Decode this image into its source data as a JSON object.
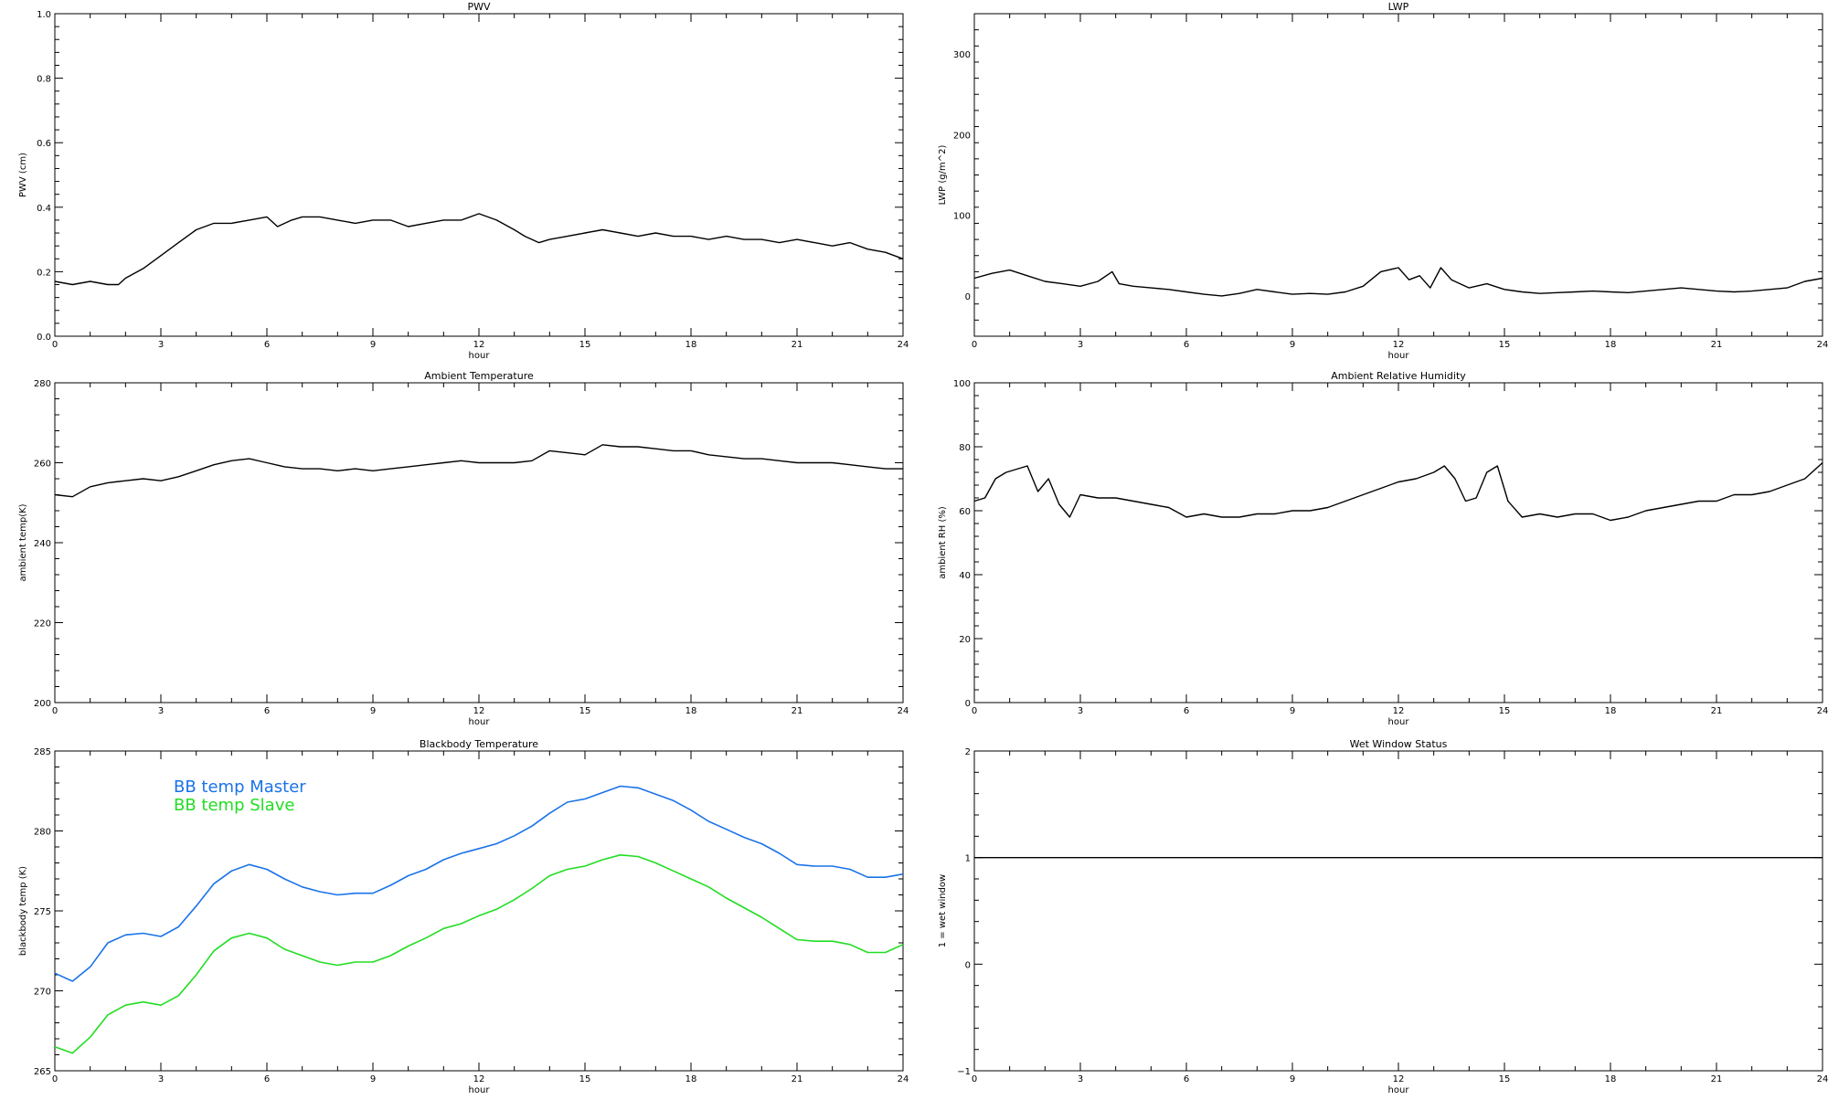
{
  "chart_data": [
    {
      "type": "line",
      "title": "PWV",
      "xlabel": "hour",
      "ylabel": "PWV (cm)",
      "xlim": [
        0,
        24
      ],
      "ylim": [
        0.0,
        1.0
      ],
      "xticks": [
        0,
        3,
        6,
        9,
        12,
        15,
        18,
        21,
        24
      ],
      "yticks": [
        0.0,
        0.2,
        0.4,
        0.6,
        0.8,
        1.0
      ],
      "yticks_labels": [
        "0.0",
        "0.2",
        "0.4",
        "0.6",
        "0.8",
        "1.0"
      ],
      "series": [
        {
          "color": "#000000",
          "x": [
            0,
            0.5,
            1,
            1.5,
            1.8,
            2,
            2.5,
            3,
            3.5,
            4,
            4.5,
            5,
            5.5,
            6,
            6.3,
            6.7,
            7,
            7.5,
            8,
            8.5,
            9,
            9.5,
            10,
            10.5,
            11,
            11.5,
            12,
            12.5,
            13,
            13.3,
            13.7,
            14,
            14.5,
            15,
            15.5,
            16,
            16.5,
            17,
            17.5,
            18,
            18.5,
            19,
            19.5,
            20,
            20.5,
            21,
            21.5,
            22,
            22.5,
            23,
            23.5,
            24
          ],
          "y": [
            0.17,
            0.16,
            0.17,
            0.16,
            0.16,
            0.18,
            0.21,
            0.25,
            0.29,
            0.33,
            0.35,
            0.35,
            0.36,
            0.37,
            0.34,
            0.36,
            0.37,
            0.37,
            0.36,
            0.35,
            0.36,
            0.36,
            0.34,
            0.35,
            0.36,
            0.36,
            0.38,
            0.36,
            0.33,
            0.31,
            0.29,
            0.3,
            0.31,
            0.32,
            0.33,
            0.32,
            0.31,
            0.32,
            0.31,
            0.31,
            0.3,
            0.31,
            0.3,
            0.3,
            0.29,
            0.3,
            0.29,
            0.28,
            0.29,
            0.27,
            0.26,
            0.24
          ]
        }
      ]
    },
    {
      "type": "line",
      "title": "LWP",
      "xlabel": "hour",
      "ylabel": "LWP (g/m^2)",
      "xlim": [
        0,
        24
      ],
      "ylim": [
        -50,
        350
      ],
      "xticks": [
        0,
        3,
        6,
        9,
        12,
        15,
        18,
        21,
        24
      ],
      "yticks": [
        0,
        100,
        200,
        300
      ],
      "yticks_labels": [
        "0",
        "100",
        "200",
        "300"
      ],
      "series": [
        {
          "color": "#000000",
          "x": [
            0,
            0.5,
            1,
            1.5,
            2,
            2.5,
            3,
            3.5,
            3.9,
            4.1,
            4.5,
            5,
            5.5,
            6,
            6.5,
            7,
            7.5,
            8,
            8.5,
            9,
            9.5,
            10,
            10.5,
            11,
            11.5,
            12,
            12.3,
            12.6,
            12.9,
            13.2,
            13.5,
            14,
            14.5,
            15,
            15.5,
            16,
            16.5,
            17,
            17.5,
            18,
            18.5,
            19,
            19.5,
            20,
            20.5,
            21,
            21.5,
            22,
            22.5,
            23,
            23.5,
            24
          ],
          "y": [
            22,
            28,
            32,
            25,
            18,
            15,
            12,
            18,
            30,
            15,
            12,
            10,
            8,
            5,
            2,
            0,
            3,
            8,
            5,
            2,
            3,
            2,
            5,
            12,
            30,
            35,
            20,
            25,
            10,
            35,
            20,
            10,
            15,
            8,
            5,
            3,
            4,
            5,
            6,
            5,
            4,
            6,
            8,
            10,
            8,
            6,
            5,
            6,
            8,
            10,
            18,
            22
          ]
        }
      ]
    },
    {
      "type": "line",
      "title": "Ambient Temperature",
      "xlabel": "hour",
      "ylabel": "ambient temp(K)",
      "xlim": [
        0,
        24
      ],
      "ylim": [
        200,
        280
      ],
      "xticks": [
        0,
        3,
        6,
        9,
        12,
        15,
        18,
        21,
        24
      ],
      "yticks": [
        200,
        220,
        240,
        260,
        280
      ],
      "yticks_labels": [
        "200",
        "220",
        "240",
        "260",
        "280"
      ],
      "series": [
        {
          "color": "#000000",
          "x": [
            0,
            0.5,
            1,
            1.5,
            2,
            2.5,
            3,
            3.5,
            4,
            4.5,
            5,
            5.5,
            6,
            6.5,
            7,
            7.5,
            8,
            8.5,
            9,
            9.5,
            10,
            10.5,
            11,
            11.5,
            12,
            12.5,
            13,
            13.5,
            14,
            14.5,
            15,
            15.5,
            16,
            16.5,
            17,
            17.5,
            18,
            18.5,
            19,
            19.5,
            20,
            20.5,
            21,
            21.5,
            22,
            22.5,
            23,
            23.5,
            24
          ],
          "y": [
            252,
            251.5,
            254,
            255,
            255.5,
            256,
            255.5,
            256.5,
            258,
            259.5,
            260.5,
            261,
            260,
            259,
            258.5,
            258.5,
            258,
            258.5,
            258,
            258.5,
            259,
            259.5,
            260,
            260.5,
            260,
            260,
            260,
            260.5,
            263,
            262.5,
            262,
            264.5,
            264,
            264,
            263.5,
            263,
            263,
            262,
            261.5,
            261,
            261,
            260.5,
            260,
            260,
            260,
            259.5,
            259,
            258.5,
            258.5
          ]
        }
      ]
    },
    {
      "type": "line",
      "title": "Ambient Relative Humidity",
      "xlabel": "hour",
      "ylabel": "ambient RH (%)",
      "xlim": [
        0,
        24
      ],
      "ylim": [
        0,
        100
      ],
      "xticks": [
        0,
        3,
        6,
        9,
        12,
        15,
        18,
        21,
        24
      ],
      "yticks": [
        0,
        20,
        40,
        60,
        80,
        100
      ],
      "yticks_labels": [
        "0",
        "20",
        "40",
        "60",
        "80",
        "100"
      ],
      "series": [
        {
          "color": "#000000",
          "x": [
            0,
            0.3,
            0.6,
            0.9,
            1.2,
            1.5,
            1.8,
            2.1,
            2.4,
            2.7,
            3,
            3.5,
            4,
            4.5,
            5,
            5.5,
            6,
            6.5,
            7,
            7.5,
            8,
            8.5,
            9,
            9.5,
            10,
            10.5,
            11,
            11.5,
            12,
            12.5,
            13,
            13.3,
            13.6,
            13.9,
            14.2,
            14.5,
            14.8,
            15.1,
            15.5,
            16,
            16.5,
            17,
            17.5,
            18,
            18.5,
            19,
            19.5,
            20,
            20.5,
            21,
            21.5,
            22,
            22.5,
            23,
            23.5,
            24
          ],
          "y": [
            63,
            64,
            70,
            72,
            73,
            74,
            66,
            70,
            62,
            58,
            65,
            64,
            64,
            63,
            62,
            61,
            58,
            59,
            58,
            58,
            59,
            59,
            60,
            60,
            61,
            63,
            65,
            67,
            69,
            70,
            72,
            74,
            70,
            63,
            64,
            72,
            74,
            63,
            58,
            59,
            58,
            59,
            59,
            57,
            58,
            60,
            61,
            62,
            63,
            63,
            65,
            65,
            66,
            68,
            70,
            75
          ]
        }
      ]
    },
    {
      "type": "line",
      "title": "Blackbody Temperature",
      "xlabel": "hour",
      "ylabel": "blackbody temp (K)",
      "xlim": [
        0,
        24
      ],
      "ylim": [
        265,
        285
      ],
      "xticks": [
        0,
        3,
        6,
        9,
        12,
        15,
        18,
        21,
        24
      ],
      "yticks": [
        265,
        270,
        275,
        280,
        285
      ],
      "yticks_labels": [
        "265",
        "270",
        "275",
        "280",
        "285"
      ],
      "legend_position": "top-left",
      "series": [
        {
          "name": "BB temp Master",
          "color": "#1a73e8",
          "x": [
            0,
            0.5,
            1,
            1.5,
            2,
            2.5,
            3,
            3.5,
            4,
            4.5,
            5,
            5.5,
            6,
            6.5,
            7,
            7.5,
            8,
            8.5,
            9,
            9.5,
            10,
            10.5,
            11,
            11.5,
            12,
            12.5,
            13,
            13.5,
            14,
            14.5,
            15,
            15.5,
            16,
            16.5,
            17,
            17.5,
            18,
            18.5,
            19,
            19.5,
            20,
            20.5,
            21,
            21.5,
            22,
            22.5,
            23,
            23.5,
            24
          ],
          "y": [
            271.1,
            270.6,
            271.5,
            273.0,
            273.5,
            273.6,
            273.4,
            274.0,
            275.3,
            276.7,
            277.5,
            277.9,
            277.6,
            277.0,
            276.5,
            276.2,
            276.0,
            276.1,
            276.1,
            276.6,
            277.2,
            277.6,
            278.2,
            278.6,
            278.9,
            279.2,
            279.7,
            280.3,
            281.1,
            281.8,
            282.0,
            282.4,
            282.8,
            282.7,
            282.3,
            281.9,
            281.3,
            280.6,
            280.1,
            279.6,
            279.2,
            278.6,
            277.9,
            277.8,
            277.8,
            277.6,
            277.1,
            277.1,
            277.3
          ]
        },
        {
          "name": "BB temp Slave",
          "color": "#22dd22",
          "x": [
            0,
            0.5,
            1,
            1.5,
            2,
            2.5,
            3,
            3.5,
            4,
            4.5,
            5,
            5.5,
            6,
            6.5,
            7,
            7.5,
            8,
            8.5,
            9,
            9.5,
            10,
            10.5,
            11,
            11.5,
            12,
            12.5,
            13,
            13.5,
            14,
            14.5,
            15,
            15.5,
            16,
            16.5,
            17,
            17.5,
            18,
            18.5,
            19,
            19.5,
            20,
            20.5,
            21,
            21.5,
            22,
            22.5,
            23,
            23.5,
            24
          ],
          "y": [
            266.5,
            266.1,
            267.1,
            268.5,
            269.1,
            269.3,
            269.1,
            269.7,
            271.0,
            272.5,
            273.3,
            273.6,
            273.3,
            272.6,
            272.2,
            271.8,
            271.6,
            271.8,
            271.8,
            272.2,
            272.8,
            273.3,
            273.9,
            274.2,
            274.7,
            275.1,
            275.7,
            276.4,
            277.2,
            277.6,
            277.8,
            278.2,
            278.5,
            278.4,
            278.0,
            277.5,
            277.0,
            276.5,
            275.8,
            275.2,
            274.6,
            273.9,
            273.2,
            273.1,
            273.1,
            272.9,
            272.4,
            272.4,
            272.9
          ]
        }
      ]
    },
    {
      "type": "line",
      "title": "Wet Window Status",
      "xlabel": "hour",
      "ylabel": "1 = wet window",
      "xlim": [
        0,
        24
      ],
      "ylim": [
        -1,
        2
      ],
      "xticks": [
        0,
        3,
        6,
        9,
        12,
        15,
        18,
        21,
        24
      ],
      "yticks": [
        -1,
        0,
        1,
        2
      ],
      "yticks_labels": [
        "−1",
        "0",
        "1",
        "2"
      ],
      "series": [
        {
          "color": "#000000",
          "x": [
            0,
            24
          ],
          "y": [
            1,
            1
          ]
        }
      ]
    }
  ]
}
